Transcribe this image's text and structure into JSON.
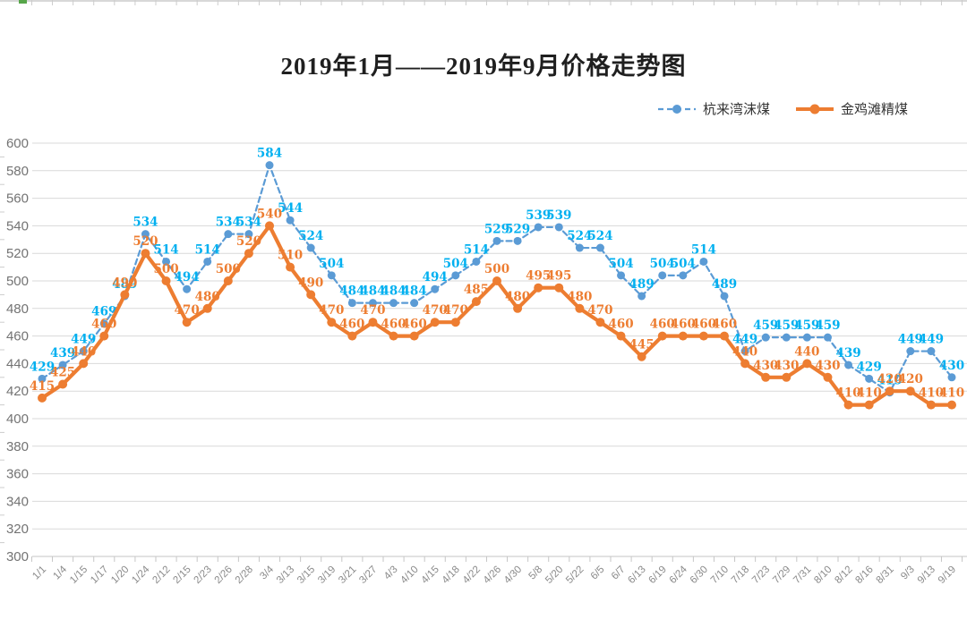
{
  "chart": {
    "title": "2019年1月——2019年9月价格走势图"
  },
  "legend": {
    "items": [
      {
        "label": "杭来湾沫煤",
        "color": "#5B9BD5",
        "style": "dashed"
      },
      {
        "label": "金鸡滩精煤",
        "color": "#ED7D31",
        "style": "solid"
      }
    ]
  },
  "chart_data": {
    "type": "line",
    "title": "2019年1月——2019年9月价格走势图",
    "categories": [
      "1/1",
      "1/4",
      "1/15",
      "1/17",
      "1/20",
      "1/24",
      "2/12",
      "2/15",
      "2/23",
      "2/26",
      "2/28",
      "3/4",
      "3/13",
      "3/15",
      "3/19",
      "3/21",
      "3/27",
      "4/3",
      "4/10",
      "4/15",
      "4/18",
      "4/22",
      "4/26",
      "4/30",
      "5/8",
      "5/20",
      "5/22",
      "6/5",
      "6/7",
      "6/13",
      "6/19",
      "6/24",
      "6/30",
      "7/10",
      "7/18",
      "7/23",
      "7/29",
      "7/31",
      "8/10",
      "8/12",
      "8/16",
      "8/31",
      "9/3",
      "9/13",
      "9/19"
    ],
    "series": [
      {
        "name": "杭来湾沫煤",
        "line_color": "#5B9BD5",
        "label_color": "#00B0F0",
        "dash": true,
        "marker": "circle",
        "values": [
          429,
          439,
          449,
          469,
          489,
          534,
          514,
          494,
          514,
          534,
          534,
          584,
          544,
          524,
          504,
          484,
          484,
          484,
          484,
          494,
          504,
          514,
          529,
          529,
          539,
          539,
          524,
          524,
          504,
          489,
          504,
          504,
          514,
          489,
          449,
          459,
          459,
          459,
          459,
          439,
          429,
          419,
          449,
          449,
          430
        ]
      },
      {
        "name": "金鸡滩精煤",
        "line_color": "#ED7D31",
        "label_color": "#ED7D31",
        "dash": false,
        "marker": "circle",
        "values": [
          415,
          425,
          440,
          460,
          490,
          520,
          500,
          470,
          480,
          500,
          520,
          540,
          510,
          490,
          470,
          460,
          470,
          460,
          460,
          470,
          470,
          485,
          500,
          480,
          495,
          495,
          480,
          470,
          460,
          445,
          460,
          460,
          460,
          460,
          440,
          430,
          430,
          440,
          430,
          410,
          410,
          420,
          420,
          410,
          410
        ]
      }
    ],
    "xlabel": "",
    "ylabel": "",
    "ylim": [
      300,
      600
    ],
    "ytick_step": 20,
    "grid": true,
    "legend_position": "top-right",
    "gridline_color": "#D9D9D9",
    "axis_line_color": "#C6C6C6",
    "axis_label_color": "#737373",
    "xtick_label_color": "#8a8a8a"
  }
}
